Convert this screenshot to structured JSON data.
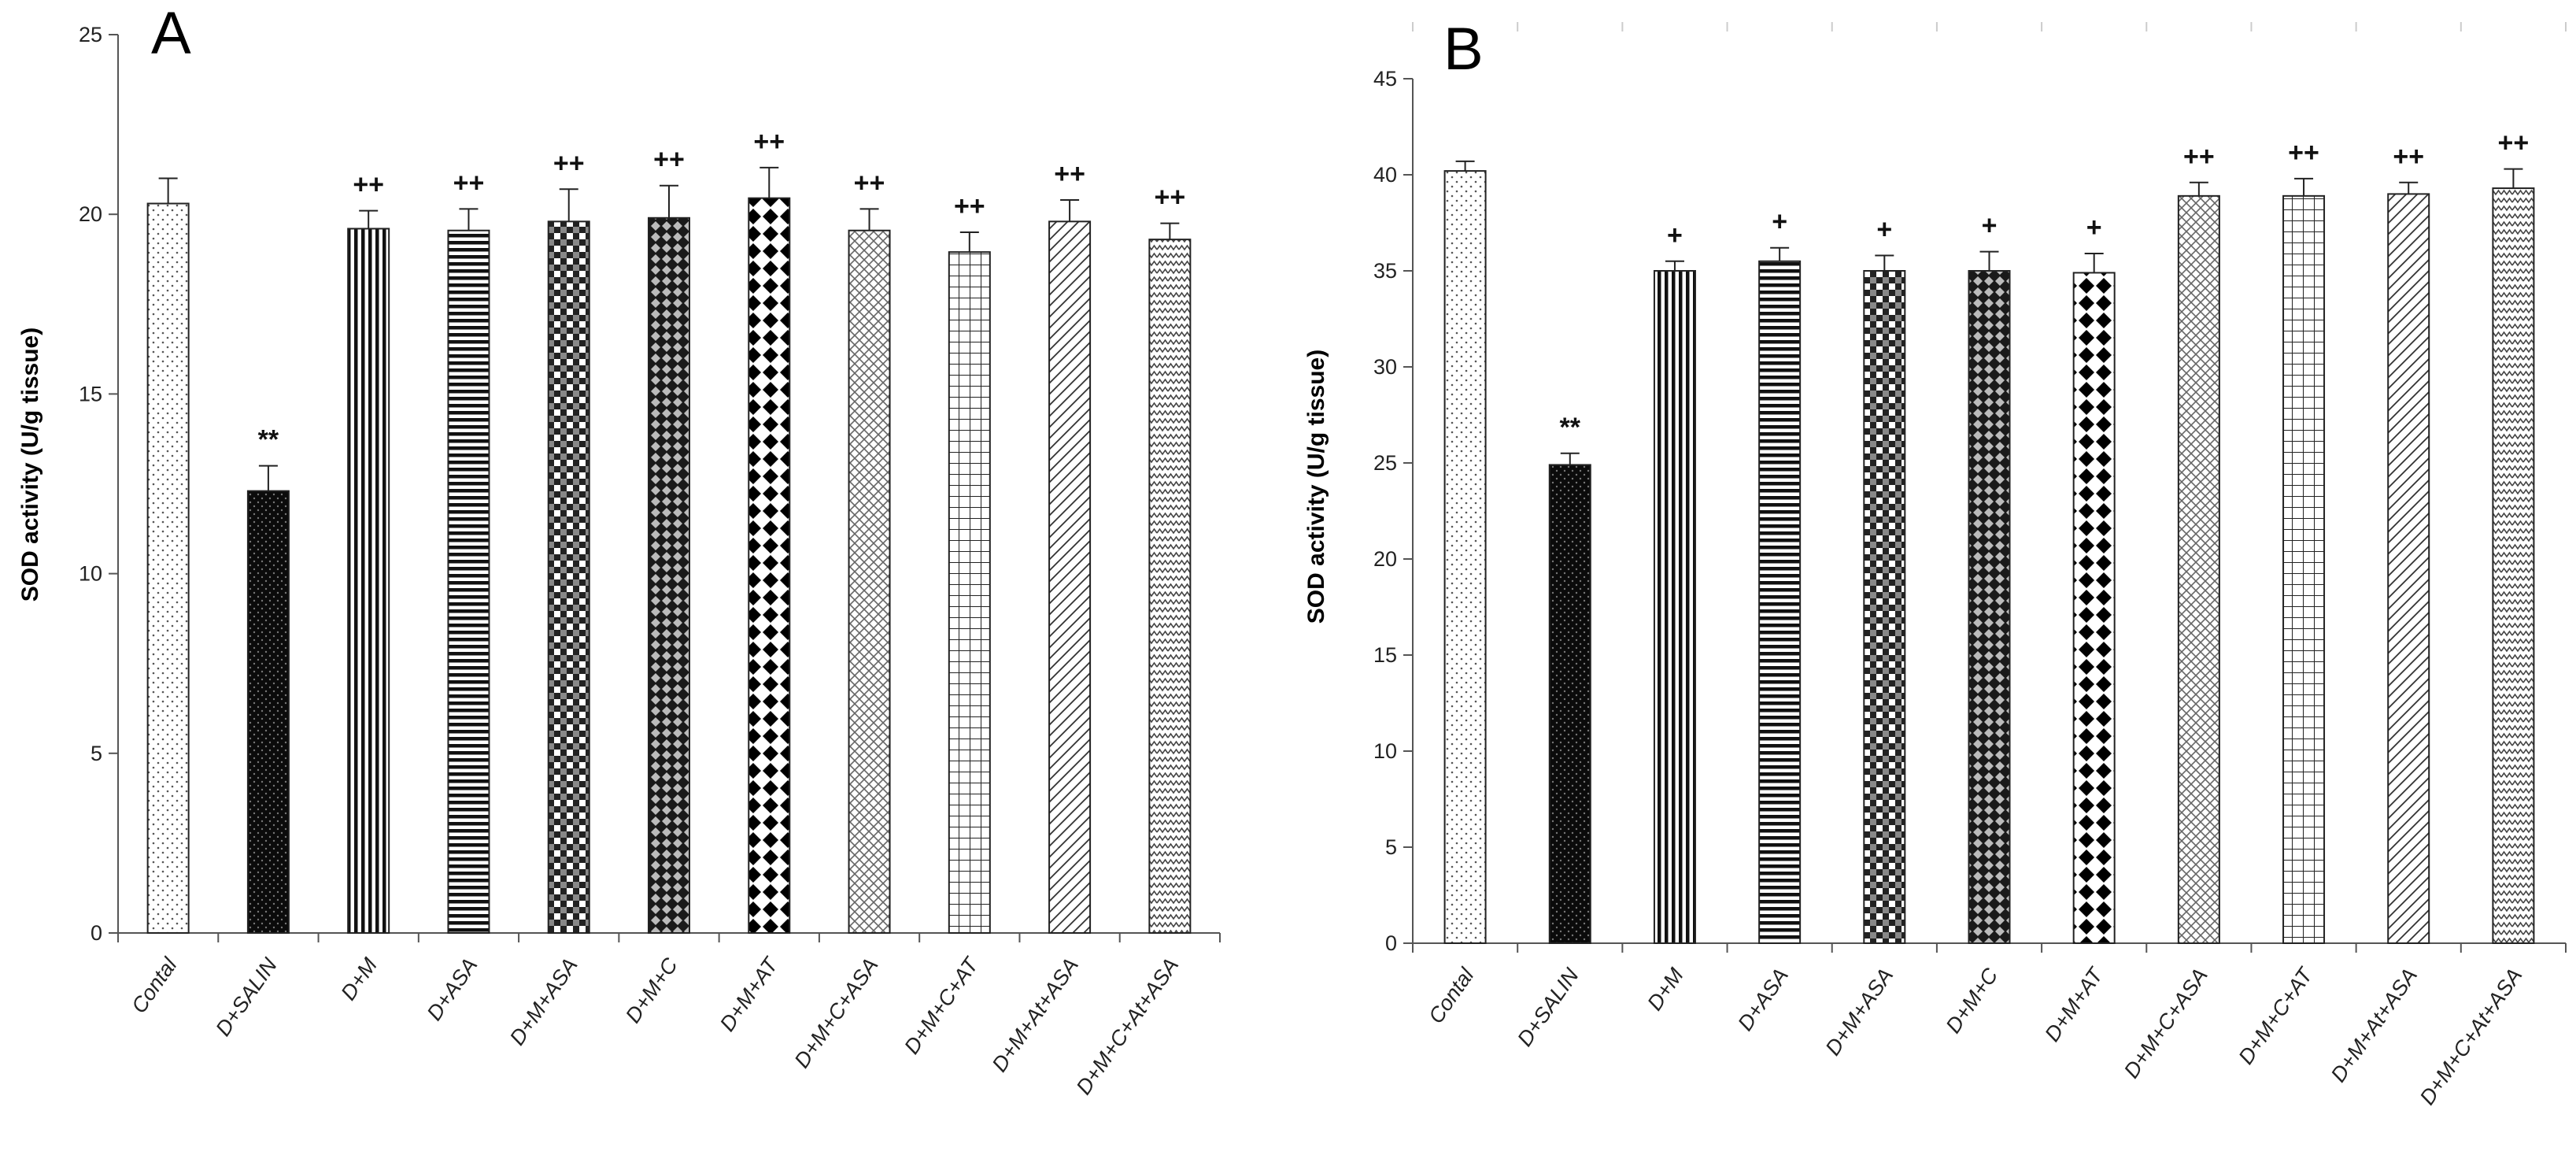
{
  "colors": {
    "ink": "#111111",
    "axis": "#555555",
    "background": "#ffffff"
  },
  "chart_data": [
    {
      "type": "bar",
      "panel": "A",
      "title": "",
      "xlabel": "",
      "ylabel": "SOD activity (U/g tissue)",
      "ylim": [
        0,
        25
      ],
      "yticks": [
        "0",
        "5",
        "10",
        "15",
        "20",
        "25"
      ],
      "categories": [
        "Contal",
        "D+SALIN",
        "D+M",
        "D+ASA",
        "D+M+ASA",
        "D+M+C",
        "D+M+AT",
        "D+M+C+ASA",
        "D+M+C+AT",
        "D+M+At+ASA",
        "D+M+C+At+ASA"
      ],
      "values": [
        20.3,
        12.3,
        19.6,
        19.55,
        19.8,
        19.9,
        20.45,
        19.55,
        18.95,
        19.8,
        19.3
      ],
      "errors": [
        0.7,
        0.7,
        0.5,
        0.6,
        0.9,
        0.9,
        0.85,
        0.6,
        0.55,
        0.6,
        0.45
      ],
      "annotations": [
        "",
        "**",
        "++",
        "++",
        "++",
        "++",
        "++",
        "++",
        "++",
        "++",
        "++"
      ],
      "patterns": [
        "dots",
        "solid",
        "vlines",
        "hlines",
        "checker",
        "diamond",
        "bigdiamond",
        "crosshatch-fine",
        "grid",
        "diag",
        "zigzag"
      ]
    },
    {
      "type": "bar",
      "panel": "B",
      "title": "",
      "xlabel": "",
      "ylabel": "SOD activity (U/g tissue)",
      "ylim": [
        0,
        45
      ],
      "yticks": [
        "0",
        "5",
        "10",
        "15",
        "20",
        "25",
        "30",
        "35",
        "40",
        "45"
      ],
      "categories": [
        "Contal",
        "D+SALIN",
        "D+M",
        "D+ASA",
        "D+M+ASA",
        "D+M+C",
        "D+M+AT",
        "D+M+C+ASA",
        "D+M+C+AT",
        "D+M+At+ASA",
        "D+M+C+At+ASA"
      ],
      "values": [
        40.2,
        24.9,
        35.0,
        35.5,
        35.0,
        35.0,
        34.9,
        38.9,
        38.9,
        39.0,
        39.3
      ],
      "errors": [
        0.5,
        0.6,
        0.5,
        0.7,
        0.8,
        1.0,
        1.0,
        0.7,
        0.9,
        0.6,
        1.0
      ],
      "annotations": [
        "",
        "**",
        "+",
        "+",
        "+",
        "+",
        "+",
        "++",
        "++",
        "++",
        "++"
      ],
      "patterns": [
        "dots",
        "solid",
        "vlines",
        "hlines",
        "checker",
        "diamond",
        "bigdiamond",
        "crosshatch-fine",
        "grid",
        "diag",
        "zigzag"
      ]
    }
  ]
}
